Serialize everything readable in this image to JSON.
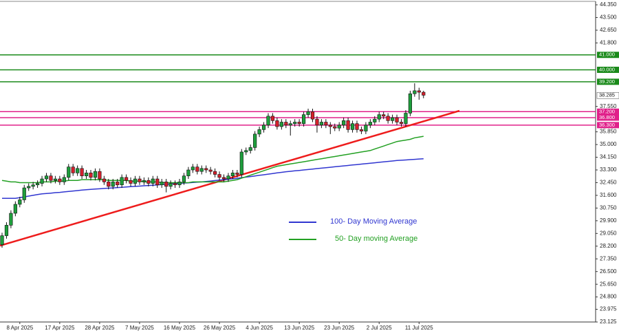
{
  "chart_data": {
    "type": "candlestick",
    "categories": [
      null,
      null,
      null,
      null,
      "8 Apr 2025",
      null,
      null,
      null,
      null,
      null,
      null,
      null,
      null,
      "17 Apr 2025",
      null,
      null,
      null,
      null,
      null,
      null,
      null,
      null,
      "28 Apr 2025",
      null,
      null,
      null,
      null,
      null,
      null,
      null,
      null,
      "7 May 2025",
      null,
      null,
      null,
      null,
      null,
      null,
      null,
      null,
      "16 May 2025",
      null,
      null,
      null,
      null,
      null,
      null,
      null,
      null,
      "26 May 2025",
      null,
      null,
      null,
      null,
      null,
      null,
      null,
      null,
      "4 Jun 2025",
      null,
      null,
      null,
      null,
      null,
      null,
      null,
      null,
      "13 Jun 2025",
      null,
      null,
      null,
      null,
      null,
      null,
      null,
      null,
      "23 Jun 2025",
      null,
      null,
      null,
      null,
      null,
      null,
      null,
      null,
      "2 Jul 2025",
      null,
      null,
      null,
      null,
      null,
      null,
      null,
      null,
      "11 Jul 2025",
      null
    ],
    "open": [
      28.3,
      28.9,
      29.6,
      30.4,
      31.0,
      31.3,
      32.1,
      32.2,
      32.3,
      32.4,
      32.7,
      32.9,
      32.6,
      32.7,
      32.5,
      32.8,
      33.5,
      33.1,
      33.4,
      32.9,
      33.1,
      32.8,
      33.2,
      32.7,
      32.5,
      32.2,
      32.5,
      32.3,
      32.8,
      32.6,
      32.4,
      32.7,
      32.5,
      32.6,
      32.4,
      32.7,
      32.3,
      32.5,
      32.2,
      32.4,
      32.3,
      32.5,
      32.9,
      33.3,
      33.5,
      33.2,
      33.4,
      33.3,
      33.2,
      33.0,
      32.8,
      32.7,
      32.9,
      33.1,
      33.0,
      34.5,
      34.6,
      34.8,
      35.7,
      36.0,
      36.3,
      36.9,
      36.6,
      36.2,
      36.5,
      36.3,
      36.4,
      36.5,
      36.4,
      37.0,
      37.2,
      36.7,
      36.3,
      36.5,
      36.3,
      36.2,
      36.1,
      36.3,
      36.6,
      36.0,
      36.4,
      36.0,
      35.9,
      36.3,
      36.5,
      36.7,
      37.0,
      36.9,
      36.6,
      36.8,
      36.5,
      36.4,
      37.1,
      38.4,
      38.6,
      38.5
    ],
    "high": [
      29.1,
      29.8,
      30.6,
      31.2,
      31.5,
      32.3,
      32.4,
      32.5,
      32.6,
      32.9,
      33.1,
      33.1,
      32.9,
      32.9,
      33.0,
      33.7,
      33.7,
      33.6,
      33.6,
      33.3,
      33.3,
      33.4,
      33.4,
      32.9,
      32.7,
      32.7,
      32.7,
      33.0,
      33.0,
      32.8,
      32.9,
      32.9,
      32.8,
      32.8,
      32.9,
      32.9,
      32.7,
      32.7,
      32.6,
      32.6,
      32.7,
      33.1,
      33.5,
      33.7,
      33.7,
      33.6,
      33.6,
      33.5,
      33.4,
      33.2,
      33.0,
      33.1,
      33.3,
      33.3,
      34.7,
      34.8,
      35.0,
      35.9,
      36.2,
      36.5,
      37.1,
      37.1,
      36.8,
      36.7,
      36.7,
      36.6,
      36.7,
      36.7,
      37.2,
      37.4,
      37.4,
      36.9,
      36.7,
      36.7,
      36.5,
      36.4,
      36.5,
      36.8,
      36.8,
      36.6,
      36.6,
      36.2,
      36.5,
      36.7,
      36.9,
      37.2,
      37.2,
      37.1,
      37.0,
      37.0,
      36.7,
      37.3,
      38.6,
      39.1,
      38.8,
      38.6
    ],
    "low": [
      28.1,
      28.7,
      29.4,
      30.2,
      30.8,
      31.1,
      31.9,
      32.0,
      32.1,
      32.2,
      32.5,
      32.4,
      32.4,
      32.3,
      32.3,
      32.6,
      32.9,
      32.9,
      32.7,
      32.7,
      32.6,
      32.6,
      32.5,
      32.3,
      32.0,
      32.0,
      32.1,
      32.1,
      32.4,
      32.2,
      32.2,
      32.3,
      32.3,
      32.2,
      32.2,
      32.1,
      32.1,
      31.8,
      32.0,
      32.1,
      32.1,
      32.3,
      32.7,
      33.1,
      33.0,
      33.0,
      33.1,
      33.0,
      32.8,
      32.6,
      32.5,
      32.5,
      32.7,
      32.8,
      32.8,
      34.3,
      34.4,
      34.6,
      35.5,
      35.8,
      36.1,
      36.4,
      36.0,
      36.0,
      36.1,
      35.6,
      36.2,
      36.2,
      36.2,
      36.8,
      36.5,
      35.8,
      36.1,
      36.1,
      35.7,
      35.9,
      35.9,
      36.1,
      35.8,
      35.8,
      35.8,
      35.7,
      35.7,
      36.1,
      36.3,
      36.5,
      36.7,
      36.4,
      36.4,
      36.3,
      36.2,
      36.2,
      36.9,
      38.2,
      38.0,
      38.1
    ],
    "close": [
      28.9,
      29.6,
      30.4,
      31.0,
      31.3,
      32.1,
      32.2,
      32.3,
      32.4,
      32.7,
      32.9,
      32.6,
      32.7,
      32.5,
      32.8,
      33.5,
      33.1,
      33.4,
      32.9,
      33.1,
      32.8,
      33.2,
      32.7,
      32.5,
      32.2,
      32.5,
      32.3,
      32.8,
      32.6,
      32.4,
      32.7,
      32.5,
      32.6,
      32.4,
      32.7,
      32.3,
      32.5,
      32.2,
      32.4,
      32.3,
      32.5,
      32.9,
      33.3,
      33.5,
      33.2,
      33.4,
      33.3,
      33.2,
      33.0,
      32.8,
      32.7,
      32.9,
      33.1,
      33.0,
      34.5,
      34.6,
      34.8,
      35.7,
      36.0,
      36.3,
      36.9,
      36.6,
      36.2,
      36.5,
      36.3,
      36.4,
      36.5,
      36.4,
      37.0,
      37.2,
      36.7,
      36.3,
      36.5,
      36.3,
      36.2,
      36.1,
      36.3,
      36.6,
      36.0,
      36.4,
      36.0,
      35.9,
      36.3,
      36.5,
      36.7,
      37.0,
      36.9,
      36.6,
      36.8,
      36.5,
      36.4,
      37.1,
      38.4,
      38.6,
      38.5,
      38.3
    ],
    "up_color": "#1e9e3c",
    "down_color": "#d4202c",
    "series": [
      {
        "name": "100- Day Moving Average",
        "color": "#2f35d0",
        "values": [
          31.4,
          31.4,
          31.4,
          31.4,
          31.45,
          31.5,
          31.55,
          31.6,
          31.65,
          31.7,
          31.72,
          31.75,
          31.78,
          31.8,
          31.83,
          31.86,
          31.89,
          31.92,
          31.95,
          31.98,
          32.0,
          32.02,
          32.04,
          32.06,
          32.08,
          32.1,
          32.12,
          32.14,
          32.16,
          32.18,
          32.2,
          32.22,
          32.24,
          32.26,
          32.28,
          32.3,
          32.32,
          32.34,
          32.36,
          32.38,
          32.4,
          32.42,
          32.44,
          32.46,
          32.48,
          32.5,
          32.53,
          32.56,
          32.59,
          32.62,
          32.65,
          32.68,
          32.71,
          32.74,
          32.78,
          32.82,
          32.86,
          32.9,
          32.94,
          32.98,
          33.02,
          33.06,
          33.1,
          33.14,
          33.18,
          33.21,
          33.24,
          33.27,
          33.3,
          33.33,
          33.36,
          33.39,
          33.42,
          33.45,
          33.48,
          33.51,
          33.54,
          33.57,
          33.6,
          33.63,
          33.66,
          33.69,
          33.72,
          33.75,
          33.78,
          33.81,
          33.84,
          33.87,
          33.9,
          33.93,
          33.95,
          33.97,
          33.99,
          34.01,
          34.03,
          34.05
        ]
      },
      {
        "name": "50- Day moving Average",
        "color": "#22a022",
        "values": [
          32.6,
          32.55,
          32.5,
          32.5,
          32.45,
          32.45,
          32.45,
          32.45,
          32.45,
          32.5,
          32.5,
          32.5,
          32.55,
          32.55,
          32.55,
          32.6,
          32.6,
          32.6,
          32.65,
          32.65,
          32.65,
          32.65,
          32.65,
          32.65,
          32.6,
          32.6,
          32.6,
          32.6,
          32.6,
          32.55,
          32.55,
          32.55,
          32.5,
          32.5,
          32.5,
          32.5,
          32.45,
          32.45,
          32.45,
          32.45,
          32.45,
          32.45,
          32.45,
          32.5,
          32.5,
          32.5,
          32.5,
          32.5,
          32.5,
          32.5,
          32.5,
          32.55,
          32.6,
          32.65,
          32.75,
          32.85,
          32.95,
          33.05,
          33.15,
          33.25,
          33.35,
          33.45,
          33.55,
          33.6,
          33.65,
          33.7,
          33.75,
          33.8,
          33.85,
          33.9,
          33.95,
          34.0,
          34.05,
          34.1,
          34.15,
          34.2,
          34.25,
          34.3,
          34.35,
          34.4,
          34.45,
          34.5,
          34.55,
          34.6,
          34.7,
          34.8,
          34.9,
          35.0,
          35.1,
          35.2,
          35.25,
          35.3,
          35.35,
          35.45,
          35.5,
          35.55
        ]
      }
    ],
    "ylim": [
      23.125,
      44.35
    ],
    "yticks": [
      {
        "value": 44.35,
        "label": "44.350"
      },
      {
        "value": 43.5,
        "label": "43.500"
      },
      {
        "value": 42.65,
        "label": "42.650"
      },
      {
        "value": 41.8,
        "label": "41.800"
      },
      {
        "value": 37.55,
        "label": "37.550"
      },
      {
        "value": 35.85,
        "label": "35.850"
      },
      {
        "value": 35,
        "label": "35.000"
      },
      {
        "value": 34.15,
        "label": "34.150"
      },
      {
        "value": 33.3,
        "label": "33.300"
      },
      {
        "value": 32.45,
        "label": "32.450"
      },
      {
        "value": 31.6,
        "label": "31.600"
      },
      {
        "value": 30.75,
        "label": "30.750"
      },
      {
        "value": 29.9,
        "label": "29.900"
      },
      {
        "value": 29.05,
        "label": "29.050"
      },
      {
        "value": 28.2,
        "label": "28.200"
      },
      {
        "value": 27.35,
        "label": "27.350"
      },
      {
        "value": 26.5,
        "label": "26.500"
      },
      {
        "value": 25.65,
        "label": "25.650"
      },
      {
        "value": 24.8,
        "label": "24.800"
      },
      {
        "value": 23.975,
        "label": "23.975"
      },
      {
        "value": 23.125,
        "label": "23.125"
      }
    ],
    "levels": [
      {
        "value": 41,
        "label": "41.000",
        "color": "#1a8a1a"
      },
      {
        "value": 40,
        "label": "40.000",
        "color": "#1a8a1a"
      },
      {
        "value": 39.2,
        "label": "39.200",
        "color": "#1a8a1a"
      },
      {
        "value": 37.2,
        "label": "37.200",
        "color": "#e0208a"
      },
      {
        "value": 36.8,
        "label": "36.800",
        "color": "#e0208a"
      },
      {
        "value": 36.3,
        "label": "36.300",
        "color": "#e0208a"
      }
    ],
    "last_price": {
      "value": 38.285,
      "label": "38.285"
    }
  }
}
